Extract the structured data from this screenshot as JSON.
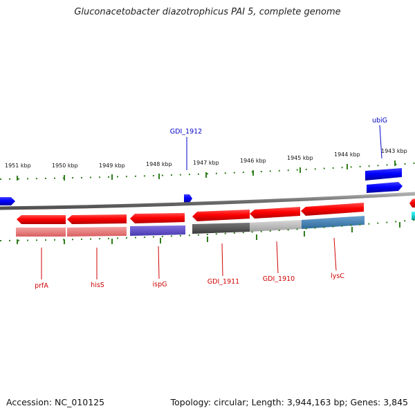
{
  "title": "Gluconacetobacter diazotrophicus PAI 5, complete genome",
  "footer": {
    "accession": "Accession: NC_010125",
    "summary": "Topology: circular; Length: 3,944,163 bp; Genes: 3,845"
  },
  "scale_labels": [
    "1951 kbp",
    "1950 kbp",
    "1949 kbp",
    "1948 kbp",
    "1947 kbp",
    "1946 kbp",
    "1945 kbp",
    "1944 kbp",
    "1943 kbp"
  ],
  "gene_labels_top": [
    "GDI_1912",
    "ubiG"
  ],
  "gene_labels_bottom": [
    "prfA",
    "hisS",
    "ispG",
    "GDI_1911",
    "GDI_1910",
    "lysC"
  ],
  "colors": {
    "label_top": "#0000c8",
    "label_bottom": "#d00000",
    "tick": "#2e7d1a",
    "backbone": "#808080",
    "gene_red": "#ff0000",
    "gene_blue": "#0000ff",
    "gene_cyan": "#00cccc",
    "cog_pink": "#e87878",
    "cog_purple": "#6a5acd",
    "cog_darkgray": "#555555",
    "cog_lightgray": "#bbbbbb",
    "cog_steelblue": "#4682b4"
  }
}
